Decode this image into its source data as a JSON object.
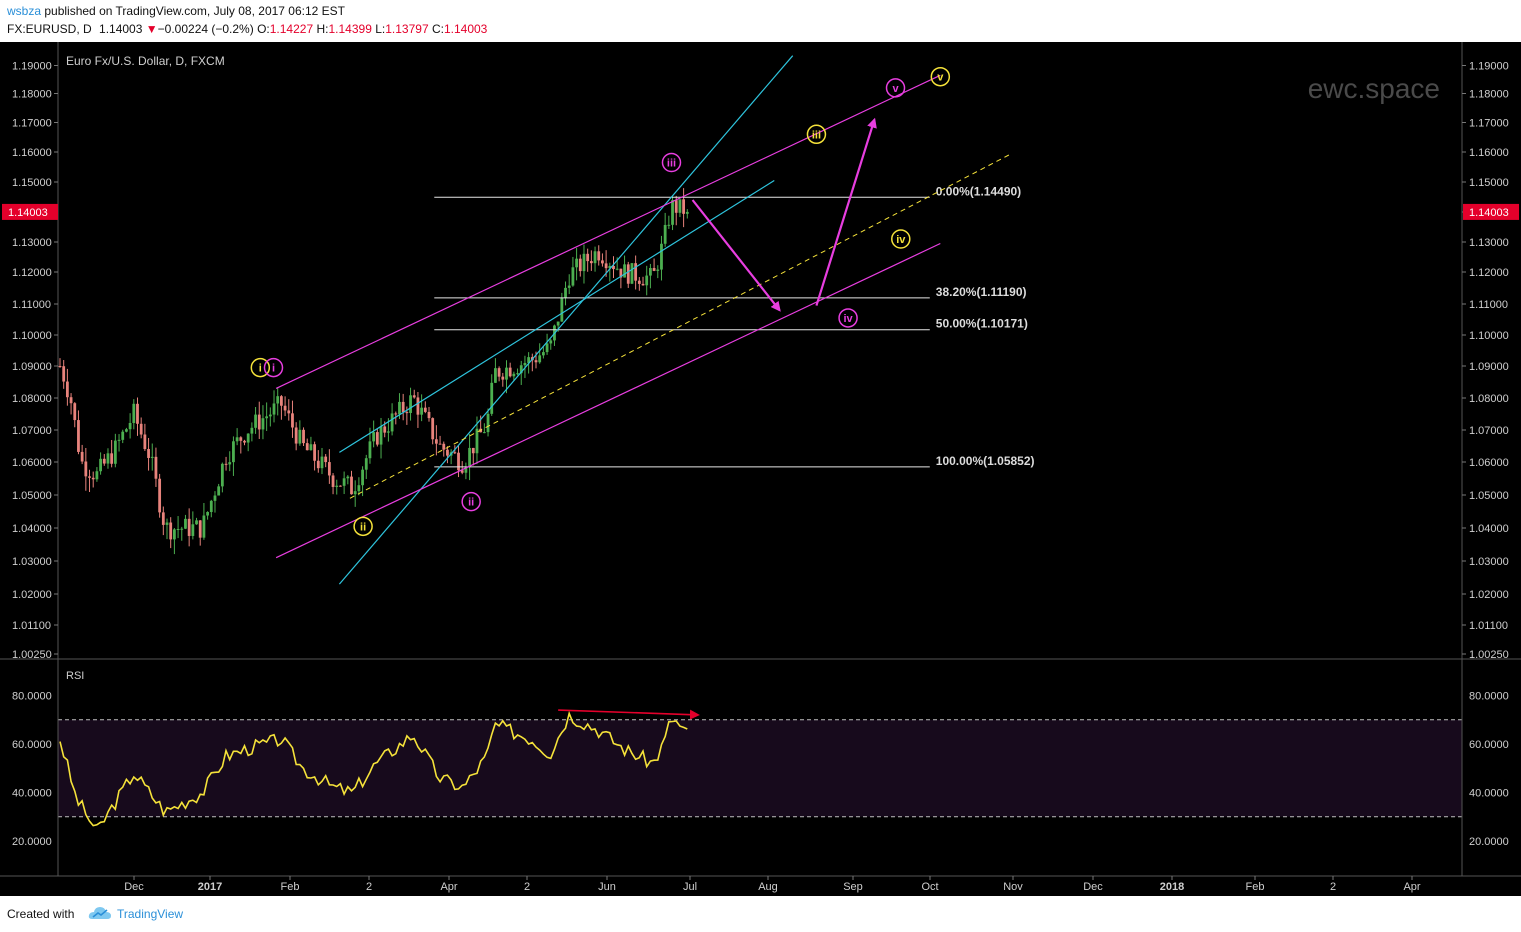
{
  "header": {
    "username": "wsbza",
    "published_text": "published on TradingView.com, July 08, 2017 06:12 EST",
    "symbol": "FX:EURUSD, D",
    "last_price": "1.14003",
    "change": "−0.00224 (−0.2%)",
    "open_label": "O:",
    "open": "1.14227",
    "high_label": "H:",
    "high": "1.14399",
    "low_label": "L:",
    "low": "1.13797",
    "close_label": "C:",
    "close": "1.14003"
  },
  "footer": {
    "created_with": "Created with",
    "brand": "TradingView"
  },
  "chart_data": {
    "type": "candlestick",
    "instrument_label": "Euro Fx/U.S. Dollar, D, FXCM",
    "watermark": "ewc.space",
    "last_price_badge": "1.14003",
    "price_axis_ticks": [
      "1.19000",
      "1.18000",
      "1.17000",
      "1.16000",
      "1.15000",
      "1.14000",
      "1.13000",
      "1.12000",
      "1.11000",
      "1.10000",
      "1.09000",
      "1.08000",
      "1.07000",
      "1.06000",
      "1.05000",
      "1.04000",
      "1.03000",
      "1.02000",
      "1.01100",
      "1.00250"
    ],
    "time_axis": [
      {
        "label": "Dec",
        "bold": false
      },
      {
        "label": "2017",
        "bold": true
      },
      {
        "label": "Feb",
        "bold": false
      },
      {
        "label": "2",
        "bold": false
      },
      {
        "label": "Apr",
        "bold": false
      },
      {
        "label": "2",
        "bold": false
      },
      {
        "label": "Jun",
        "bold": false
      },
      {
        "label": "Jul",
        "bold": false
      },
      {
        "label": "Aug",
        "bold": false
      },
      {
        "label": "Sep",
        "bold": false
      },
      {
        "label": "Oct",
        "bold": false
      },
      {
        "label": "Nov",
        "bold": false
      },
      {
        "label": "Dec",
        "bold": false
      },
      {
        "label": "2018",
        "bold": true
      },
      {
        "label": "Feb",
        "bold": false
      },
      {
        "label": "2",
        "bold": false
      },
      {
        "label": "Apr",
        "bold": false
      }
    ],
    "fibonacci_levels": [
      {
        "label": "0.00%(1.14490)",
        "price": 1.1449
      },
      {
        "label": "38.20%(1.11190)",
        "price": 1.1119
      },
      {
        "label": "50.00%(1.10171)",
        "price": 1.10171
      },
      {
        "label": "100.00%(1.05852)",
        "price": 1.05852
      }
    ],
    "wave_labels": [
      {
        "text": "i",
        "color": "#f5e23a",
        "date": "2017-01-25",
        "price": 1.0895
      },
      {
        "text": "i",
        "color": "#e83ee0",
        "date": "2017-01-30",
        "price": 1.0895
      },
      {
        "text": "ii",
        "color": "#f5e23a",
        "date": "2017-03-05",
        "price": 1.0405
      },
      {
        "text": "ii",
        "color": "#e83ee0",
        "date": "2017-04-15",
        "price": 1.048
      },
      {
        "text": "iii",
        "color": "#e83ee0",
        "date": "2017-06-30",
        "price": 1.1565
      },
      {
        "text": "iii",
        "color": "#f5e23a",
        "date": "2017-08-24",
        "price": 1.166
      },
      {
        "text": "iv",
        "color": "#e83ee0",
        "date": "2017-09-05",
        "price": 1.1055
      },
      {
        "text": "iv",
        "color": "#f5e23a",
        "date": "2017-09-25",
        "price": 1.131
      },
      {
        "text": "v",
        "color": "#e83ee0",
        "date": "2017-09-23",
        "price": 1.182
      },
      {
        "text": "v",
        "color": "#f5e23a",
        "date": "2017-10-10",
        "price": 1.186
      }
    ],
    "ohlc": {
      "start_date": "2016-11-10",
      "end_date": "2017-07-07",
      "anchors": [
        {
          "date": "2016-11-10",
          "price": 1.09
        },
        {
          "date": "2016-11-11",
          "price": 1.088
        },
        {
          "date": "2016-11-14",
          "price": 1.08
        },
        {
          "date": "2016-11-18",
          "price": 1.06
        },
        {
          "date": "2016-11-24",
          "price": 1.056
        },
        {
          "date": "2016-12-01",
          "price": 1.064
        },
        {
          "date": "2016-12-08",
          "price": 1.075
        },
        {
          "date": "2016-12-14",
          "price": 1.062
        },
        {
          "date": "2016-12-20",
          "price": 1.04
        },
        {
          "date": "2017-01-03",
          "price": 1.04
        },
        {
          "date": "2017-01-12",
          "price": 1.062
        },
        {
          "date": "2017-01-20",
          "price": 1.07
        },
        {
          "date": "2017-02-02",
          "price": 1.078
        },
        {
          "date": "2017-02-10",
          "price": 1.065
        },
        {
          "date": "2017-02-22",
          "price": 1.055
        },
        {
          "date": "2017-03-01",
          "price": 1.052
        },
        {
          "date": "2017-03-10",
          "price": 1.068
        },
        {
          "date": "2017-03-24",
          "price": 1.08
        },
        {
          "date": "2017-04-03",
          "price": 1.065
        },
        {
          "date": "2017-04-12",
          "price": 1.06
        },
        {
          "date": "2017-04-21",
          "price": 1.072
        },
        {
          "date": "2017-04-24",
          "price": 1.088
        },
        {
          "date": "2017-05-08",
          "price": 1.092
        },
        {
          "date": "2017-05-15",
          "price": 1.096
        },
        {
          "date": "2017-05-22",
          "price": 1.119
        },
        {
          "date": "2017-06-02",
          "price": 1.127
        },
        {
          "date": "2017-06-12",
          "price": 1.12
        },
        {
          "date": "2017-06-23",
          "price": 1.118
        },
        {
          "date": "2017-06-27",
          "price": 1.13
        },
        {
          "date": "2017-06-30",
          "price": 1.142
        },
        {
          "date": "2017-07-07",
          "price": 1.14
        }
      ]
    },
    "rsi": {
      "label": "RSI",
      "axis_ticks": [
        "80.0000",
        "60.0000",
        "40.0000",
        "20.0000"
      ],
      "overbought": 70,
      "oversold": 30,
      "anchors": [
        {
          "date": "2016-11-10",
          "value": 62
        },
        {
          "date": "2016-11-16",
          "value": 38
        },
        {
          "date": "2016-11-24",
          "value": 24
        },
        {
          "date": "2016-12-01",
          "value": 36
        },
        {
          "date": "2016-12-08",
          "value": 48
        },
        {
          "date": "2016-12-14",
          "value": 40
        },
        {
          "date": "2016-12-20",
          "value": 32
        },
        {
          "date": "2017-01-03",
          "value": 40
        },
        {
          "date": "2017-01-12",
          "value": 55
        },
        {
          "date": "2017-01-20",
          "value": 58
        },
        {
          "date": "2017-02-02",
          "value": 62
        },
        {
          "date": "2017-02-10",
          "value": 50
        },
        {
          "date": "2017-02-22",
          "value": 42
        },
        {
          "date": "2017-03-01",
          "value": 40
        },
        {
          "date": "2017-03-10",
          "value": 52
        },
        {
          "date": "2017-03-24",
          "value": 64
        },
        {
          "date": "2017-04-03",
          "value": 46
        },
        {
          "date": "2017-04-12",
          "value": 42
        },
        {
          "date": "2017-04-21",
          "value": 55
        },
        {
          "date": "2017-04-24",
          "value": 68
        },
        {
          "date": "2017-05-08",
          "value": 62
        },
        {
          "date": "2017-05-15",
          "value": 56
        },
        {
          "date": "2017-05-22",
          "value": 72
        },
        {
          "date": "2017-06-02",
          "value": 66
        },
        {
          "date": "2017-06-12",
          "value": 58
        },
        {
          "date": "2017-06-23",
          "value": 52
        },
        {
          "date": "2017-06-27",
          "value": 60
        },
        {
          "date": "2017-06-30",
          "value": 71
        },
        {
          "date": "2017-07-07",
          "value": 63
        }
      ],
      "divergence_line": {
        "from": {
          "date": "2017-05-18",
          "value": 74
        },
        "to": {
          "date": "2017-07-07",
          "value": 72
        }
      }
    },
    "channels": {
      "cyan": [
        {
          "from": {
            "date": "2017-02-24",
            "price": 1.023
          },
          "to": {
            "date": "2017-08-15",
            "price": 1.1935
          }
        },
        {
          "from": {
            "date": "2017-02-24",
            "price": 1.063
          },
          "to": {
            "date": "2017-08-08",
            "price": 1.1505
          }
        }
      ],
      "magenta": [
        {
          "from": {
            "date": "2017-01-31",
            "price": 1.083
          },
          "to": {
            "date": "2017-10-10",
            "price": 1.1865
          }
        },
        {
          "from": {
            "date": "2017-01-31",
            "price": 1.031
          },
          "to": {
            "date": "2017-10-10",
            "price": 1.1295
          }
        }
      ],
      "yellow_dashed": {
        "from": {
          "date": "2017-02-28",
          "price": 1.049
        },
        "to": {
          "date": "2017-11-05",
          "price": 1.159
        }
      }
    },
    "arrows": [
      {
        "from": {
          "date": "2017-07-08",
          "price": 1.144
        },
        "to": {
          "date": "2017-08-10",
          "price": 1.108
        }
      },
      {
        "from": {
          "date": "2017-08-24",
          "price": 1.1095
        },
        "to": {
          "date": "2017-09-15",
          "price": 1.171
        }
      }
    ],
    "colors": {
      "background": "#000000",
      "up_candle": "#4caf50",
      "down_candle": "#e8837c",
      "rsi_line": "#f5e23a",
      "rsi_band": "#170a1c",
      "last_price_badge": "#e4002b",
      "cyan": "#2ec4dd",
      "magenta": "#e83ee0",
      "divergence": "#e4002b"
    }
  }
}
